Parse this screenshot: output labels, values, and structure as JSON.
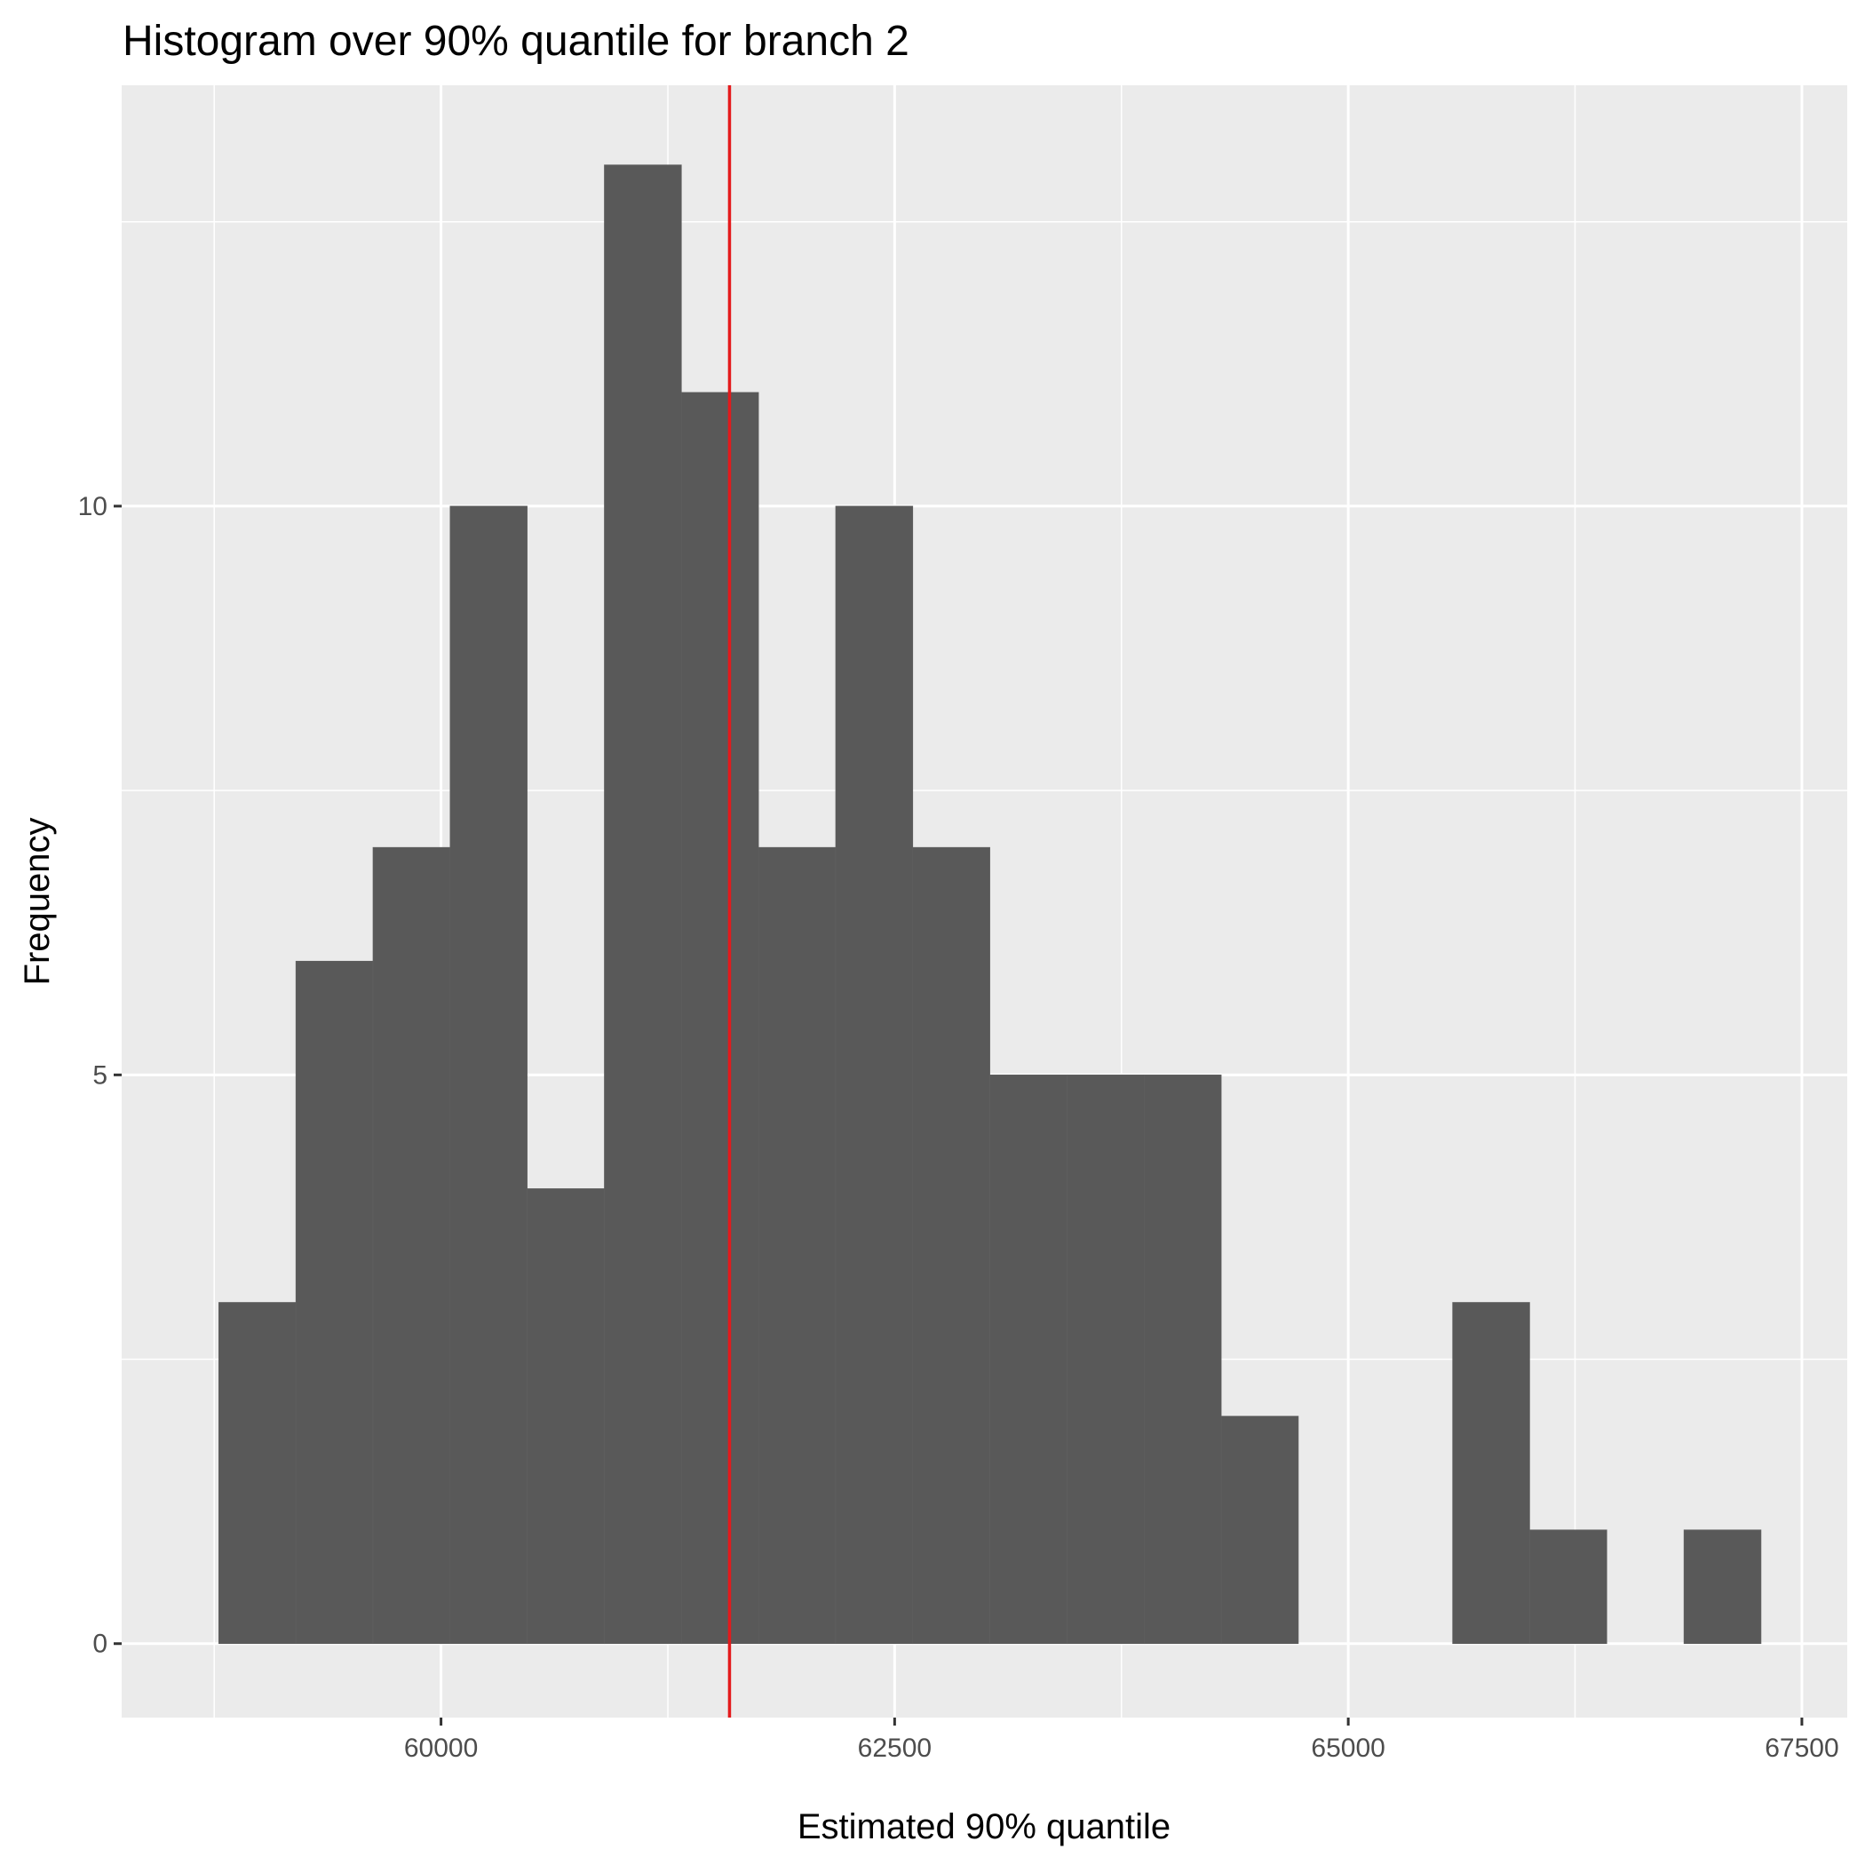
{
  "chart_data": {
    "type": "bar",
    "title": "Histogram over 90% quantile for branch 2",
    "xlabel": "Estimated 90% quantile",
    "ylabel": "Frequency",
    "x_ticks": [
      60000,
      62500,
      65000,
      67500
    ],
    "x_tick_labels": [
      "60000",
      "62500",
      "65000",
      "67500"
    ],
    "y_ticks": [
      0,
      5,
      10
    ],
    "y_tick_labels": [
      "0",
      "5",
      "10"
    ],
    "xlim": [
      58240,
      67750
    ],
    "ylim": [
      -0.65,
      13.7
    ],
    "grid": true,
    "bin_width": 425,
    "bins": [
      {
        "x0": 58775,
        "x1": 59200,
        "count": 3
      },
      {
        "x0": 59200,
        "x1": 59625,
        "count": 6
      },
      {
        "x0": 59625,
        "x1": 60050,
        "count": 7
      },
      {
        "x0": 60050,
        "x1": 60475,
        "count": 10
      },
      {
        "x0": 60475,
        "x1": 60900,
        "count": 4
      },
      {
        "x0": 60900,
        "x1": 61325,
        "count": 13
      },
      {
        "x0": 61325,
        "x1": 61750,
        "count": 11
      },
      {
        "x0": 61750,
        "x1": 62175,
        "count": 7
      },
      {
        "x0": 62175,
        "x1": 62600,
        "count": 10
      },
      {
        "x0": 62600,
        "x1": 63025,
        "count": 7
      },
      {
        "x0": 63025,
        "x1": 63450,
        "count": 5
      },
      {
        "x0": 63450,
        "x1": 63875,
        "count": 5
      },
      {
        "x0": 63875,
        "x1": 64300,
        "count": 5
      },
      {
        "x0": 64300,
        "x1": 64725,
        "count": 2
      },
      {
        "x0": 64725,
        "x1": 65150,
        "count": 0
      },
      {
        "x0": 65150,
        "x1": 65575,
        "count": 0
      },
      {
        "x0": 65575,
        "x1": 66000,
        "count": 3
      },
      {
        "x0": 66000,
        "x1": 66425,
        "count": 1
      },
      {
        "x0": 66425,
        "x1": 66850,
        "count": 0
      },
      {
        "x0": 66850,
        "x1": 67275,
        "count": 1
      }
    ],
    "vline": {
      "x": 61590,
      "color": "#e41a1c"
    },
    "colors": {
      "bar": "#595959",
      "panel": "#ebebeb",
      "grid": "#ffffff"
    }
  }
}
